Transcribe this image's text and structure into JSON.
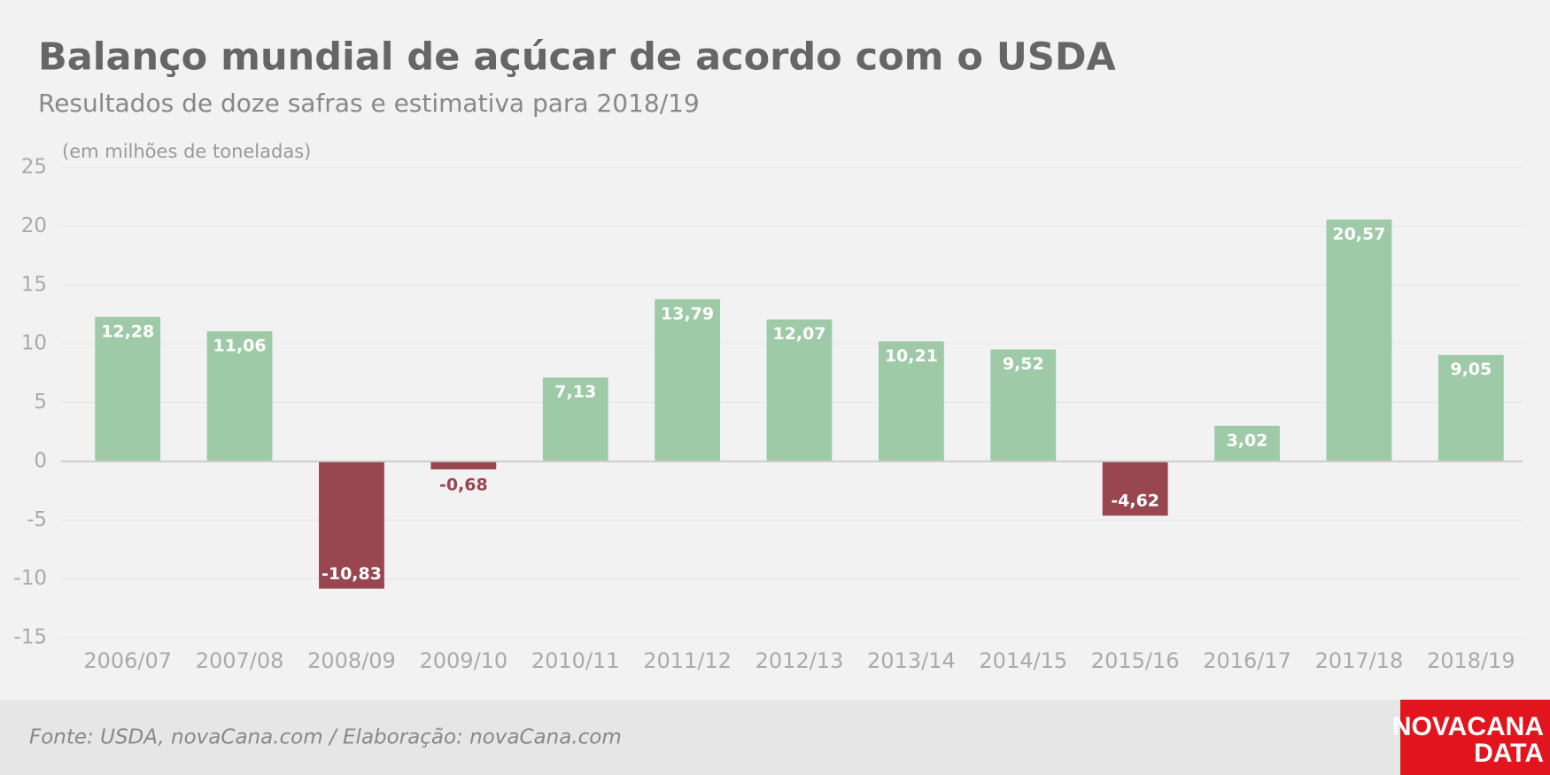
{
  "chart_data": {
    "type": "bar",
    "title": "Balanço mundial de açúcar de acordo com o USDA",
    "subtitle": "Resultados de doze safras e estimativa para 2018/19",
    "y_label": "(em milhões de toneladas)",
    "categories": [
      "2006/07",
      "2007/08",
      "2008/09",
      "2009/10",
      "2010/11",
      "2011/12",
      "2012/13",
      "2013/14",
      "2014/15",
      "2015/16",
      "2016/17",
      "2017/18",
      "2018/19"
    ],
    "values": [
      12.28,
      11.06,
      -10.83,
      -0.68,
      7.13,
      13.79,
      12.07,
      10.21,
      9.52,
      -4.62,
      3.02,
      20.57,
      9.05
    ],
    "value_labels": [
      "12,28",
      "11,06",
      "-10,83",
      "-0,68",
      "7,13",
      "13,79",
      "12,07",
      "10,21",
      "9,52",
      "-4,62",
      "3,02",
      "20,57",
      "9,05"
    ],
    "color_positive": "#9fcaa8",
    "color_negative": "#98464f",
    "ylim": [
      -15,
      25
    ],
    "yticks": [
      -15,
      -10,
      -5,
      0,
      5,
      10,
      15,
      20,
      25
    ],
    "grid": true
  },
  "footer": {
    "source": "Fonte: USDA, novaCana.com / Elaboração: novaCana.com",
    "logo_top": "NOVACANA",
    "logo_bottom": "DATA"
  }
}
